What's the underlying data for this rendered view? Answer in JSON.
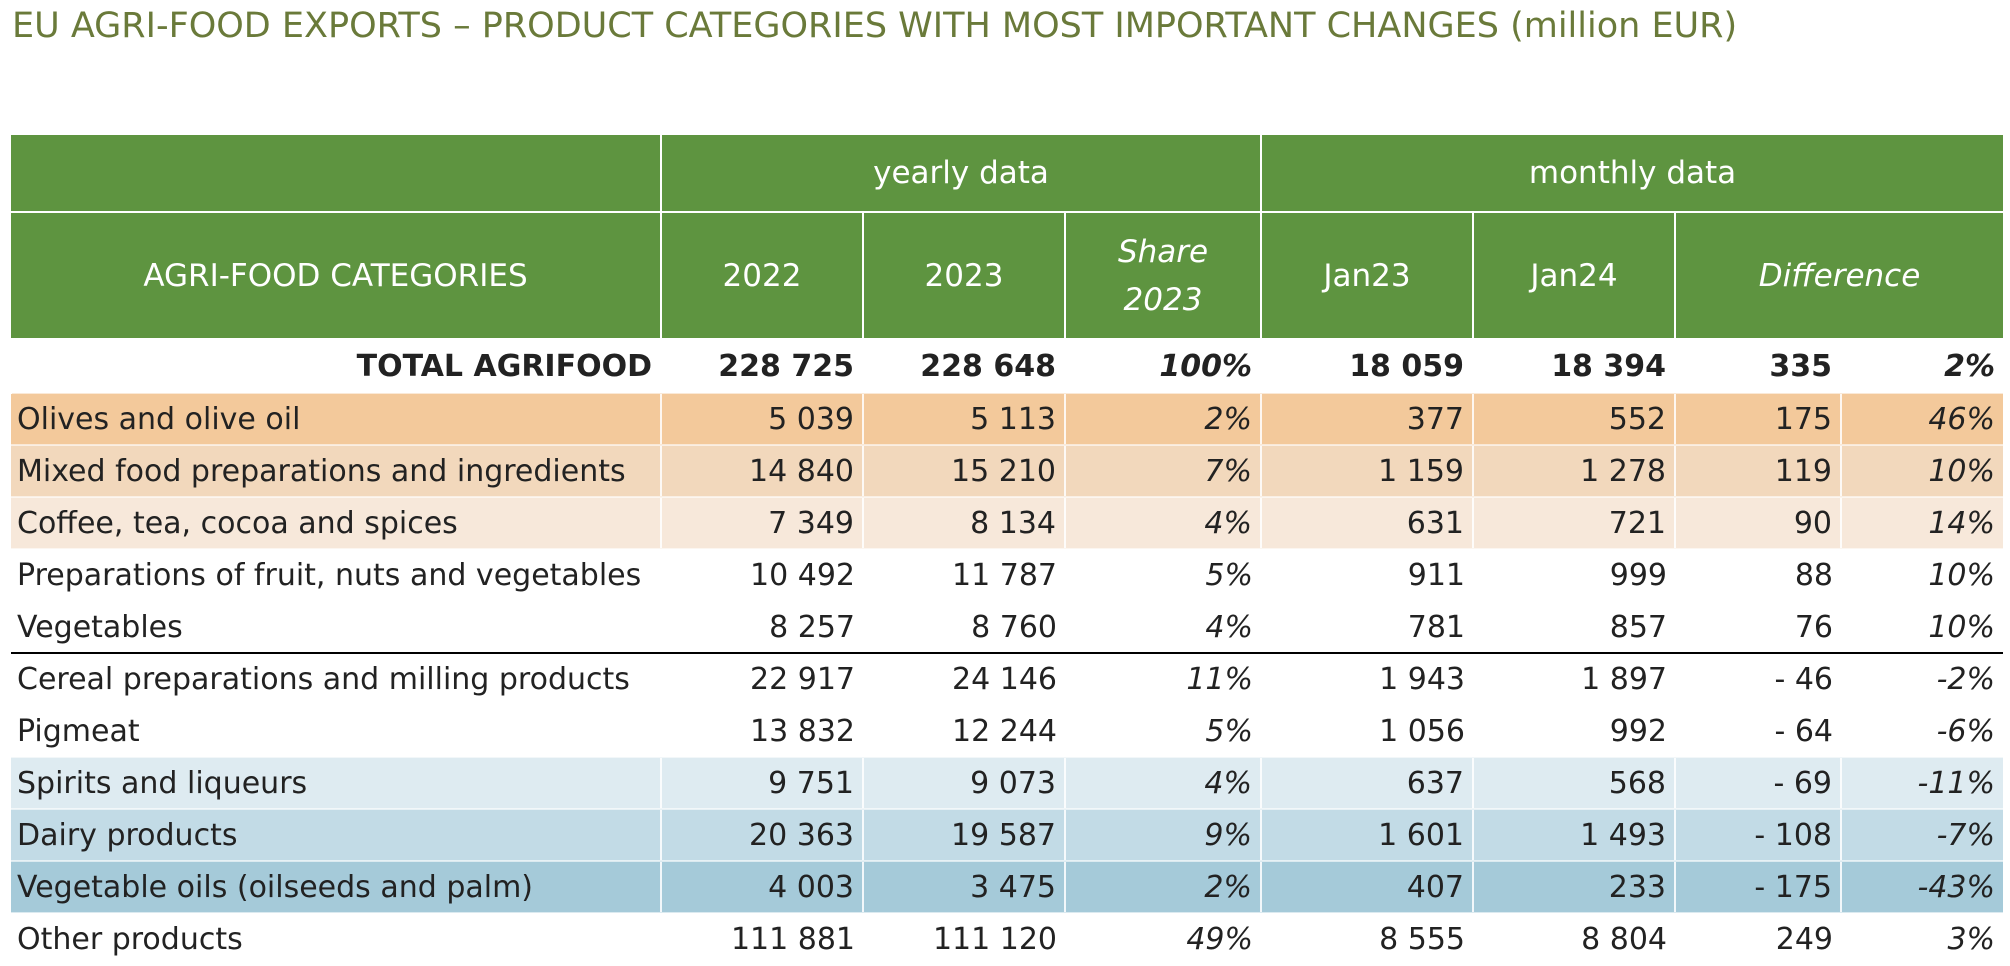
{
  "title": "EU AGRI-FOOD EXPORTS – PRODUCT CATEGORIES WITH MOST IMPORTANT CHANGES (million EUR)",
  "header": {
    "group_yearly": "yearly data",
    "group_monthly": "monthly data",
    "col_category": "AGRI-FOOD CATEGORIES",
    "col_2022": "2022",
    "col_2023": "2023",
    "col_share_l1": "Share",
    "col_share_l2": "2023",
    "col_jan23": "Jan23",
    "col_jan24": "Jan24",
    "col_difference": "Difference"
  },
  "total": {
    "label": "TOTAL AGRIFOOD",
    "y2022": "228 725",
    "y2023": "228 648",
    "share": "100%",
    "jan23": "18 059",
    "jan24": "18 394",
    "diff": "335",
    "diff_pct": "2%"
  },
  "rows": [
    {
      "label": "Olives and olive oil",
      "y2022": "5 039",
      "y2023": "5 113",
      "share": "2%",
      "jan23": "377",
      "jan24": "552",
      "diff": "175",
      "diff_pct": "46%",
      "color": "#f3c99b"
    },
    {
      "label": "Mixed food preparations and ingredients",
      "y2022": "14 840",
      "y2023": "15 210",
      "share": "7%",
      "jan23": "1 159",
      "jan24": "1 278",
      "diff": "119",
      "diff_pct": "10%",
      "color": "#f2d8bc"
    },
    {
      "label": "Coffee, tea, cocoa and spices",
      "y2022": "7 349",
      "y2023": "8 134",
      "share": "4%",
      "jan23": "631",
      "jan24": "721",
      "diff": "90",
      "diff_pct": "14%",
      "color": "#f7e8da"
    },
    {
      "label": "Preparations of fruit, nuts and vegetables",
      "y2022": "10 492",
      "y2023": "11 787",
      "share": "5%",
      "jan23": "911",
      "jan24": "999",
      "diff": "88",
      "diff_pct": "10%",
      "color": "#ffffff"
    },
    {
      "label": "Vegetables",
      "y2022": "8 257",
      "y2023": "8 760",
      "share": "4%",
      "jan23": "781",
      "jan24": "857",
      "diff": "76",
      "diff_pct": "10%",
      "color": "#ffffff"
    },
    {
      "label": "Cereal preparations and milling products",
      "y2022": "22 917",
      "y2023": "24 146",
      "share": "11%",
      "jan23": "1 943",
      "jan24": "1 897",
      "diff": "- 46",
      "diff_pct": "-2%",
      "color": "#ffffff"
    },
    {
      "label": "Pigmeat",
      "y2022": "13 832",
      "y2023": "12 244",
      "share": "5%",
      "jan23": "1 056",
      "jan24": "992",
      "diff": "- 64",
      "diff_pct": "-6%",
      "color": "#ffffff"
    },
    {
      "label": "Spirits and liqueurs",
      "y2022": "9 751",
      "y2023": "9 073",
      "share": "4%",
      "jan23": "637",
      "jan24": "568",
      "diff": "- 69",
      "diff_pct": "-11%",
      "color": "#deebf1"
    },
    {
      "label": "Dairy products",
      "y2022": "20 363",
      "y2023": "19 587",
      "share": "9%",
      "jan23": "1 601",
      "jan24": "1 493",
      "diff": "- 108",
      "diff_pct": "-7%",
      "color": "#c2dbe6"
    },
    {
      "label": "Vegetable oils (oilseeds and palm)",
      "y2022": "4 003",
      "y2023": "3 475",
      "share": "2%",
      "jan23": "407",
      "jan24": "233",
      "diff": "- 175",
      "diff_pct": "-43%",
      "color": "#a5cad9"
    },
    {
      "label": "Other products",
      "y2022": "111 881",
      "y2023": "111 120",
      "share": "49%",
      "jan23": "8 555",
      "jan24": "8 804",
      "diff": "249",
      "diff_pct": "3%",
      "color": "#ffffff"
    }
  ]
}
